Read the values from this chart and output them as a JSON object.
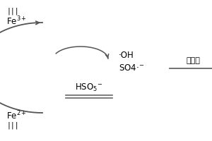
{
  "fe3_label": "Fe$^{3+}$",
  "fe3_roman": "|||",
  "fe2_label": "Fe$^{2+}$",
  "fe2_roman": "|||",
  "hso5_label": "HSO$_5$$^{-}$",
  "oh_label": "·OH",
  "so4_label": "SO4·$^{-}$",
  "organic_label": "有机物",
  "bg_color": "#ffffff",
  "arrow_color": "#555555",
  "text_color": "#000000",
  "line_color": "#666666"
}
